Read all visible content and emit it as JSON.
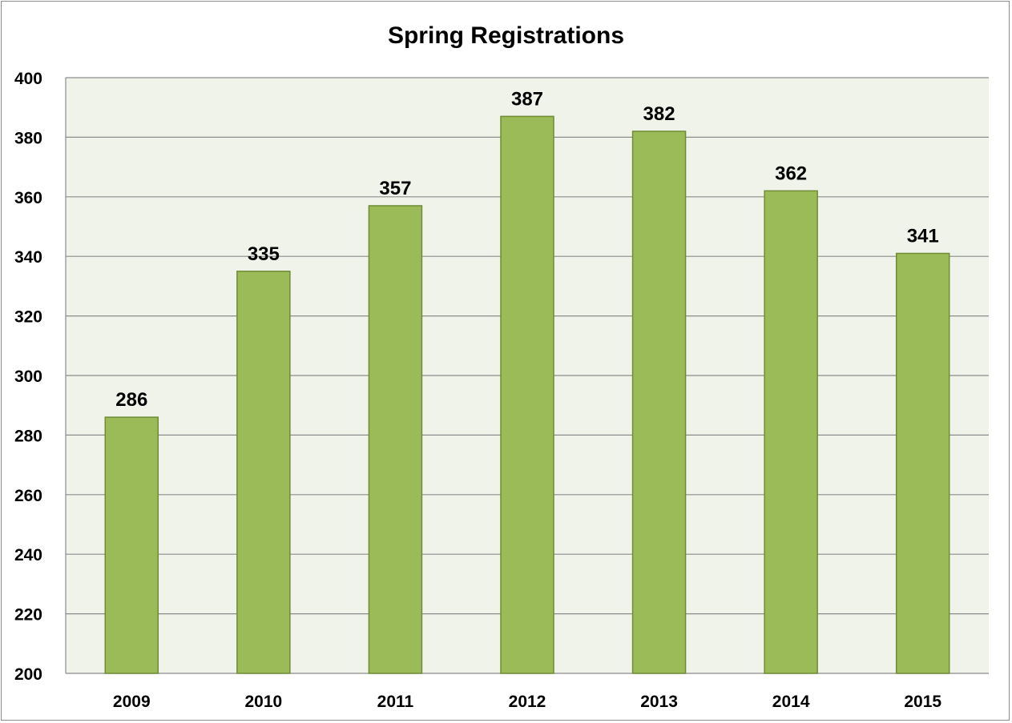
{
  "chart_data": {
    "type": "bar",
    "title": "Spring Registrations",
    "xlabel": "",
    "ylabel": "",
    "categories": [
      "2009",
      "2010",
      "2011",
      "2012",
      "2013",
      "2014",
      "2015"
    ],
    "values": [
      286,
      335,
      357,
      387,
      382,
      362,
      341
    ],
    "ylim": [
      200,
      400
    ],
    "yticks": [
      200,
      220,
      240,
      260,
      280,
      300,
      320,
      340,
      360,
      380,
      400
    ],
    "grid": true,
    "legend": "none",
    "data_labels": true,
    "colors": {
      "bar_fill": "#9bbb59",
      "bar_stroke": "#6f8c35",
      "plot_background": "#eff3ea",
      "grid": "#8c8c8c"
    }
  }
}
